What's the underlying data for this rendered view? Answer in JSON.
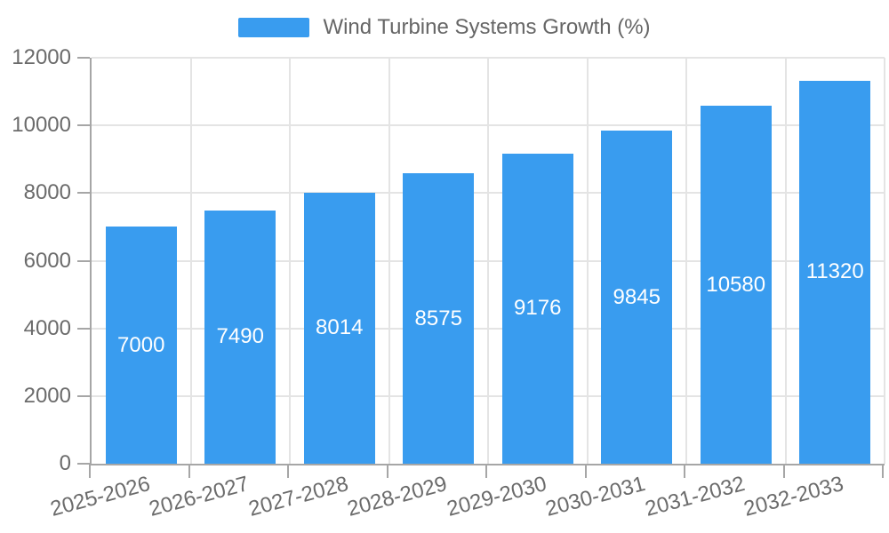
{
  "legend": {
    "label": "Wind Turbine Systems Growth (%)"
  },
  "chart_data": {
    "type": "bar",
    "title": "",
    "xlabel": "",
    "ylabel": "",
    "series_name": "Wind Turbine Systems Growth (%)",
    "categories": [
      "2025-2026",
      "2026-2027",
      "2027-2028",
      "2028-2029",
      "2029-2030",
      "2030-2031",
      "2031-2032",
      "2032-2033"
    ],
    "values": [
      7000,
      7490,
      8014,
      8575,
      9176,
      9845,
      10580,
      11320
    ],
    "value_labels": [
      "7000",
      "7490",
      "8014",
      "8575",
      "9176",
      "9845",
      "10580",
      "11320"
    ],
    "ylim": [
      0,
      12000
    ],
    "yticks": [
      0,
      2000,
      4000,
      6000,
      8000,
      10000,
      12000
    ],
    "ytick_labels": [
      "0",
      "2000",
      "4000",
      "6000",
      "8000",
      "10000",
      "12000"
    ],
    "grid": true,
    "legend_position": "top",
    "bar_color": "#399cef",
    "bar_label_color": "#ffffff",
    "axis_text_color": "#6b6b6b",
    "legend_text_color": "#666666",
    "grid_color": "#e4e4e4",
    "axis_line_color": "#a6a6a6"
  }
}
